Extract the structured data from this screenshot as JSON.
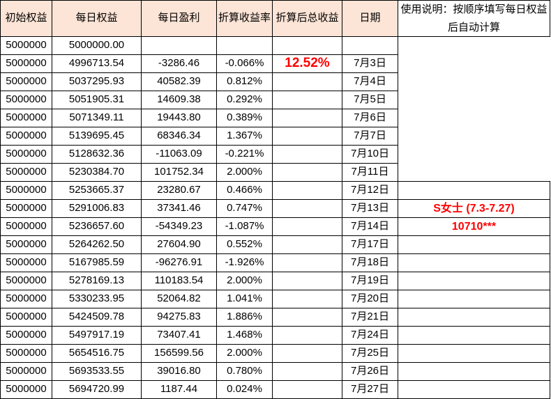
{
  "table": {
    "headers": [
      "初始权益",
      "每日权益",
      "每日盈利",
      "折算收益率",
      "折算后总收益",
      "日期"
    ],
    "rows": [
      {
        "initial": "5000000",
        "equity": "5000000.00",
        "profit": "",
        "rate": "",
        "total": "",
        "date": "",
        "note": null
      },
      {
        "initial": "5000000",
        "equity": "4996713.54",
        "profit": "-3286.46",
        "rate": "-0.066%",
        "total": "12.52%",
        "date": "7月3日",
        "note": null
      },
      {
        "initial": "5000000",
        "equity": "5037295.93",
        "profit": "40582.39",
        "rate": "0.812%",
        "total": "",
        "date": "7月4日",
        "note": null
      },
      {
        "initial": "5000000",
        "equity": "5051905.31",
        "profit": "14609.38",
        "rate": "0.292%",
        "total": "",
        "date": "7月5日",
        "note": null
      },
      {
        "initial": "5000000",
        "equity": "5071349.11",
        "profit": "19443.80",
        "rate": "0.389%",
        "total": "",
        "date": "7月6日",
        "note": null
      },
      {
        "initial": "5000000",
        "equity": "5139695.45",
        "profit": "68346.34",
        "rate": "1.367%",
        "total": "",
        "date": "7月7日",
        "note": null
      },
      {
        "initial": "5000000",
        "equity": "5128632.36",
        "profit": "-11063.09",
        "rate": "-0.221%",
        "total": "",
        "date": "7月10日",
        "note": null
      },
      {
        "initial": "5000000",
        "equity": "5230384.70",
        "profit": "101752.34",
        "rate": "2.000%",
        "total": "",
        "date": "7月11日",
        "note": null
      },
      {
        "initial": "5000000",
        "equity": "5253665.37",
        "profit": "23280.67",
        "rate": "0.466%",
        "total": "",
        "date": "7月12日",
        "note": ""
      },
      {
        "initial": "5000000",
        "equity": "5291006.83",
        "profit": "37341.46",
        "rate": "0.747%",
        "total": "",
        "date": "7月13日",
        "note": "S女士 (7.3-7.27)"
      },
      {
        "initial": "5000000",
        "equity": "5236657.60",
        "profit": "-54349.23",
        "rate": "-1.087%",
        "total": "",
        "date": "7月14日",
        "note": "10710***"
      },
      {
        "initial": "5000000",
        "equity": "5264262.50",
        "profit": "27604.90",
        "rate": "0.552%",
        "total": "",
        "date": "7月17日",
        "note": ""
      },
      {
        "initial": "5000000",
        "equity": "5167985.59",
        "profit": "-96276.91",
        "rate": "-1.926%",
        "total": "",
        "date": "7月18日",
        "note": ""
      },
      {
        "initial": "5000000",
        "equity": "5278169.13",
        "profit": "110183.54",
        "rate": "2.000%",
        "total": "",
        "date": "7月19日",
        "note": ""
      },
      {
        "initial": "5000000",
        "equity": "5330233.95",
        "profit": "52064.82",
        "rate": "1.041%",
        "total": "",
        "date": "7月20日",
        "note": ""
      },
      {
        "initial": "5000000",
        "equity": "5424509.78",
        "profit": "94275.83",
        "rate": "1.886%",
        "total": "",
        "date": "7月21日",
        "note": ""
      },
      {
        "initial": "5000000",
        "equity": "5497917.19",
        "profit": "73407.41",
        "rate": "1.468%",
        "total": "",
        "date": "7月24日",
        "note": ""
      },
      {
        "initial": "5000000",
        "equity": "5654516.75",
        "profit": "156599.56",
        "rate": "2.000%",
        "total": "",
        "date": "7月25日",
        "note": ""
      },
      {
        "initial": "5000000",
        "equity": "5693533.55",
        "profit": "39016.80",
        "rate": "0.780%",
        "total": "",
        "date": "7月26日",
        "note": ""
      },
      {
        "initial": "5000000",
        "equity": "5694720.99",
        "profit": "1187.44",
        "rate": "0.024%",
        "total": "",
        "date": "7月27日",
        "note": ""
      }
    ]
  },
  "notes_panel": {
    "instructions_line1": "使用说明：按顺序填写每日权益",
    "instructions_line2": "后自动计算",
    "merged_row_span": 9
  },
  "colors": {
    "header_bg": "#fce4d6",
    "accent_red": "#ff0000",
    "border": "#000000"
  }
}
